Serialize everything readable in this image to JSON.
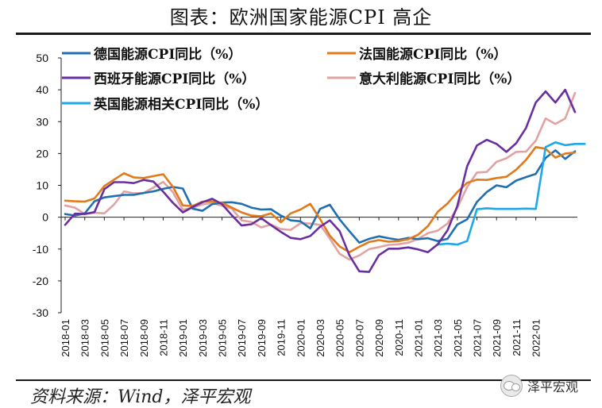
{
  "title": "图表：欧洲国家能源CPI 高企",
  "source": "资料来源：Wind，泽平宏观",
  "watermark": "泽平宏观",
  "chart_data": {
    "type": "line",
    "ylim": [
      -30,
      50
    ],
    "yticks": [
      -30,
      -20,
      -10,
      0,
      10,
      20,
      30,
      40,
      50
    ],
    "xlabels": [
      "2018-01",
      "2018-03",
      "2018-05",
      "2018-07",
      "2018-09",
      "2018-11",
      "2019-01",
      "2019-03",
      "2019-05",
      "2019-07",
      "2019-09",
      "2019-11",
      "2020-01",
      "2020-03",
      "2020-05",
      "2020-07",
      "2020-09",
      "2020-11",
      "2021-01",
      "2021-03",
      "2021-05",
      "2021-07",
      "2021-09",
      "2021-11",
      "2022-01"
    ],
    "series": [
      {
        "name": "德国能源CPI同比（%）",
        "color": "#1f6fb2",
        "start": 0,
        "values": [
          1.0,
          0.5,
          1.2,
          5.0,
          6.2,
          6.6,
          7.0,
          7.0,
          7.6,
          8.1,
          8.9,
          9.5,
          9.0,
          2.7,
          2.0,
          4.1,
          4.6,
          4.7,
          4.2,
          3.0,
          2.4,
          2.5,
          0.5,
          -1.0,
          -1.3,
          -3.5,
          2.6,
          3.9,
          -0.7,
          -4.4,
          -8.0,
          -6.8,
          -6.0,
          -6.6,
          -7.1,
          -6.5,
          -6.9,
          -6.6,
          -7.5,
          -6.8,
          -2.3,
          -0.7,
          4.8,
          7.9,
          10.0,
          9.4,
          11.5,
          12.6,
          13.6,
          18.6,
          21.0,
          18.3,
          20.7
        ]
      },
      {
        "name": "法国能源CPI同比（%）",
        "color": "#e07a1a",
        "start": 0,
        "values": [
          5.2,
          5.0,
          4.9,
          5.9,
          9.8,
          11.8,
          13.8,
          12.5,
          12.3,
          12.9,
          13.5,
          9.5,
          3.7,
          3.5,
          4.9,
          5.0,
          4.5,
          3.0,
          1.5,
          0.5,
          0.3,
          1.2,
          -1.6,
          1.2,
          2.4,
          4.2,
          -0.6,
          -5.8,
          -9.2,
          -11.0,
          -9.3,
          -7.8,
          -7.2,
          -7.7,
          -7.5,
          -6.9,
          -5.5,
          -2.8,
          1.7,
          4.3,
          7.9,
          10.8,
          11.8,
          11.7,
          12.3,
          12.7,
          14.9,
          18.0,
          22.0,
          21.5,
          18.7,
          20.0,
          20.3
        ]
      },
      {
        "name": "西班牙能源CPI同比（%）",
        "color": "#6a2f9e",
        "start": 0,
        "values": [
          -2.4,
          1.1,
          1.0,
          1.6,
          8.8,
          11.0,
          11.0,
          10.7,
          11.7,
          11.2,
          8.0,
          4.5,
          1.5,
          3.2,
          4.7,
          5.8,
          4.1,
          0.6,
          -2.6,
          -2.2,
          -0.3,
          -2.5,
          -4.6,
          -6.5,
          -6.9,
          -5.9,
          -3.0,
          -1.0,
          -4.4,
          -12.0,
          -17.0,
          -17.2,
          -11.9,
          -9.9,
          -9.9,
          -9.5,
          -10.1,
          -11.0,
          -8.5,
          -4.1,
          3.5,
          16.0,
          22.5,
          24.3,
          23.0,
          20.5,
          23.2,
          28.0,
          36.0,
          39.5,
          36.0,
          40.0,
          33.0
        ]
      },
      {
        "name": "意大利能源CPI同比（%）",
        "color": "#e3a2a2",
        "start": 0,
        "values": [
          3.7,
          3.0,
          1.0,
          1.4,
          1.2,
          4.0,
          8.1,
          7.5,
          7.6,
          9.3,
          11.1,
          7.8,
          2.3,
          3.0,
          4.0,
          4.5,
          3.6,
          2.7,
          -1.0,
          -1.5,
          -3.2,
          -2.3,
          -3.7,
          -4.0,
          -1.9,
          -2.0,
          -2.4,
          -6.7,
          -11.5,
          -13.3,
          -12.0,
          -10.0,
          -9.4,
          -8.7,
          -8.5,
          -8.0,
          -6.8,
          -5.0,
          -4.2,
          -2.0,
          2.9,
          9.5,
          14.0,
          14.2,
          17.4,
          18.5,
          20.5,
          20.6,
          24.0,
          31.0,
          29.3,
          31.0,
          39.0
        ]
      },
      {
        "name": "英国能源相关CPI同比（%）",
        "color": "#1ea8e8",
        "start": 38,
        "values": [
          -8.6,
          -8.3,
          -8.6,
          -7.5,
          2.5,
          2.8,
          2.6,
          2.6,
          2.6,
          2.7,
          2.6,
          22.0,
          23.5,
          22.6,
          23.0,
          23.0
        ]
      }
    ]
  }
}
